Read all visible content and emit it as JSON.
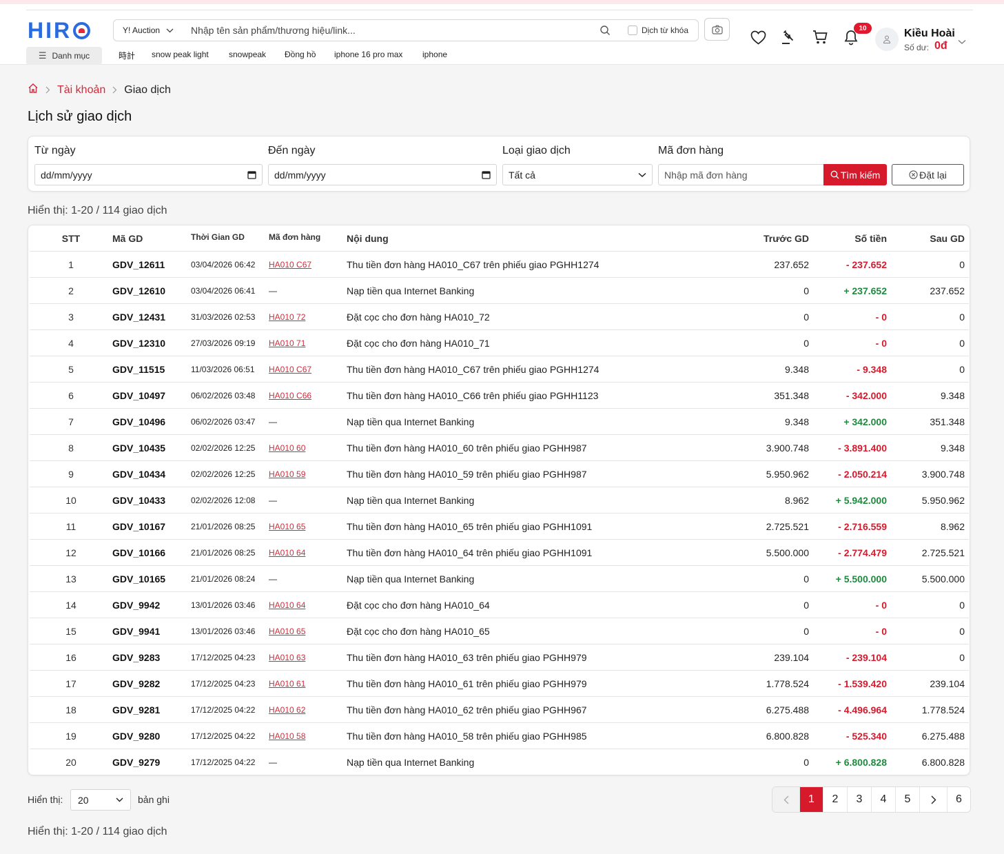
{
  "header": {
    "logo": "HIRO",
    "menu_label": "Danh mục",
    "search_type": "Y! Auction",
    "search_placeholder": "Nhập tên sản phẩm/thương hiệu/link...",
    "translate_label": "Dịch từ khóa",
    "suggestions": [
      "時計",
      "snow peak light",
      "snowpeak",
      "Đồng hồ",
      "iphone 16 pro max",
      "iphone"
    ],
    "notification_count": "10",
    "user_name": "Kiều Hoài",
    "balance_label": "Số dư:",
    "balance_value": "0đ"
  },
  "breadcrumb": {
    "account": "Tài khoản",
    "current": "Giao dịch"
  },
  "page_title": "Lịch sử giao dịch",
  "filters": {
    "from_label": "Từ ngày",
    "from_value": "dd/mm/yyyy",
    "to_label": "Đến ngày",
    "to_value": "dd/mm/yyyy",
    "type_label": "Loại giao dịch",
    "type_value": "Tất cả",
    "order_label": "Mã đơn hàng",
    "order_placeholder": "Nhập mã đơn hàng",
    "search_button": "Tìm kiếm",
    "reset_button": "Đặt lại"
  },
  "summary_text": "Hiển thị: 1-20 / 114 giao dịch",
  "table": {
    "headers": {
      "stt": "STT",
      "id": "Mã GD",
      "time": "Thời Gian GD",
      "order": "Mã đơn hàng",
      "content": "Nội dung",
      "before": "Trước GD",
      "amount": "Số tiền",
      "after": "Sau GD"
    },
    "rows": [
      {
        "stt": "1",
        "id": "GDV_12611",
        "time": "03/04/2026 06:42",
        "order": "HA010 C67",
        "content": "Thu tiền đơn hàng HA010_C67 trên phiếu giao PGHH1274",
        "before": "237.652",
        "amount": "- 237.652",
        "sign": "neg",
        "after": "0"
      },
      {
        "stt": "2",
        "id": "GDV_12610",
        "time": "03/04/2026 06:41",
        "order": "—",
        "content": "Nạp tiền qua Internet Banking",
        "before": "0",
        "amount": "+ 237.652",
        "sign": "pos",
        "after": "237.652"
      },
      {
        "stt": "3",
        "id": "GDV_12431",
        "time": "31/03/2026 02:53",
        "order": "HA010 72",
        "content": "Đặt cọc cho đơn hàng HA010_72",
        "before": "0",
        "amount": "- 0",
        "sign": "neg",
        "after": "0"
      },
      {
        "stt": "4",
        "id": "GDV_12310",
        "time": "27/03/2026 09:19",
        "order": "HA010 71",
        "content": "Đặt cọc cho đơn hàng HA010_71",
        "before": "0",
        "amount": "- 0",
        "sign": "neg",
        "after": "0"
      },
      {
        "stt": "5",
        "id": "GDV_11515",
        "time": "11/03/2026 06:51",
        "order": "HA010 C67",
        "content": "Thu tiền đơn hàng HA010_C67 trên phiếu giao PGHH1274",
        "before": "9.348",
        "amount": "- 9.348",
        "sign": "neg",
        "after": "0"
      },
      {
        "stt": "6",
        "id": "GDV_10497",
        "time": "06/02/2026 03:48",
        "order": "HA010 C66",
        "content": "Thu tiền đơn hàng HA010_C66 trên phiếu giao PGHH1123",
        "before": "351.348",
        "amount": "- 342.000",
        "sign": "neg",
        "after": "9.348"
      },
      {
        "stt": "7",
        "id": "GDV_10496",
        "time": "06/02/2026 03:47",
        "order": "—",
        "content": "Nạp tiền qua Internet Banking",
        "before": "9.348",
        "amount": "+ 342.000",
        "sign": "pos",
        "after": "351.348"
      },
      {
        "stt": "8",
        "id": "GDV_10435",
        "time": "02/02/2026 12:25",
        "order": "HA010 60",
        "content": "Thu tiền đơn hàng HA010_60 trên phiếu giao PGHH987",
        "before": "3.900.748",
        "amount": "- 3.891.400",
        "sign": "neg",
        "after": "9.348"
      },
      {
        "stt": "9",
        "id": "GDV_10434",
        "time": "02/02/2026 12:25",
        "order": "HA010 59",
        "content": "Thu tiền đơn hàng HA010_59 trên phiếu giao PGHH987",
        "before": "5.950.962",
        "amount": "- 2.050.214",
        "sign": "neg",
        "after": "3.900.748"
      },
      {
        "stt": "10",
        "id": "GDV_10433",
        "time": "02/02/2026 12:08",
        "order": "—",
        "content": "Nạp tiền qua Internet Banking",
        "before": "8.962",
        "amount": "+ 5.942.000",
        "sign": "pos",
        "after": "5.950.962"
      },
      {
        "stt": "11",
        "id": "GDV_10167",
        "time": "21/01/2026 08:25",
        "order": "HA010 65",
        "content": "Thu tiền đơn hàng HA010_65 trên phiếu giao PGHH1091",
        "before": "2.725.521",
        "amount": "- 2.716.559",
        "sign": "neg",
        "after": "8.962"
      },
      {
        "stt": "12",
        "id": "GDV_10166",
        "time": "21/01/2026 08:25",
        "order": "HA010 64",
        "content": "Thu tiền đơn hàng HA010_64 trên phiếu giao PGHH1091",
        "before": "5.500.000",
        "amount": "- 2.774.479",
        "sign": "neg",
        "after": "2.725.521"
      },
      {
        "stt": "13",
        "id": "GDV_10165",
        "time": "21/01/2026 08:24",
        "order": "—",
        "content": "Nạp tiền qua Internet Banking",
        "before": "0",
        "amount": "+ 5.500.000",
        "sign": "pos",
        "after": "5.500.000"
      },
      {
        "stt": "14",
        "id": "GDV_9942",
        "time": "13/01/2026 03:46",
        "order": "HA010 64",
        "content": "Đặt cọc cho đơn hàng HA010_64",
        "before": "0",
        "amount": "- 0",
        "sign": "neg",
        "after": "0"
      },
      {
        "stt": "15",
        "id": "GDV_9941",
        "time": "13/01/2026 03:46",
        "order": "HA010 65",
        "content": "Đặt cọc cho đơn hàng HA010_65",
        "before": "0",
        "amount": "- 0",
        "sign": "neg",
        "after": "0"
      },
      {
        "stt": "16",
        "id": "GDV_9283",
        "time": "17/12/2025 04:23",
        "order": "HA010 63",
        "content": "Thu tiền đơn hàng HA010_63 trên phiếu giao PGHH979",
        "before": "239.104",
        "amount": "- 239.104",
        "sign": "neg",
        "after": "0"
      },
      {
        "stt": "17",
        "id": "GDV_9282",
        "time": "17/12/2025 04:23",
        "order": "HA010 61",
        "content": "Thu tiền đơn hàng HA010_61 trên phiếu giao PGHH979",
        "before": "1.778.524",
        "amount": "- 1.539.420",
        "sign": "neg",
        "after": "239.104"
      },
      {
        "stt": "18",
        "id": "GDV_9281",
        "time": "17/12/2025 04:22",
        "order": "HA010 62",
        "content": "Thu tiền đơn hàng HA010_62 trên phiếu giao PGHH967",
        "before": "6.275.488",
        "amount": "- 4.496.964",
        "sign": "neg",
        "after": "1.778.524"
      },
      {
        "stt": "19",
        "id": "GDV_9280",
        "time": "17/12/2025 04:22",
        "order": "HA010 58",
        "content": "Thu tiền đơn hàng HA010_58 trên phiếu giao PGHH985",
        "before": "6.800.828",
        "amount": "- 525.340",
        "sign": "neg",
        "after": "6.275.488"
      },
      {
        "stt": "20",
        "id": "GDV_9279",
        "time": "17/12/2025 04:22",
        "order": "—",
        "content": "Nạp tiền qua Internet Banking",
        "before": "0",
        "amount": "+ 6.800.828",
        "sign": "pos",
        "after": "6.800.828"
      }
    ]
  },
  "footer": {
    "show_label": "Hiển thị:",
    "page_size": "20",
    "records_label": "bản ghi",
    "pages": [
      "1",
      "2",
      "3",
      "4",
      "5"
    ],
    "last_page": "6",
    "active_page": "1"
  },
  "colors": {
    "brand_red": "#d7192c",
    "brand_blue": "#2a6be0",
    "negative": "#d7192c",
    "positive": "#1e8a3e"
  }
}
